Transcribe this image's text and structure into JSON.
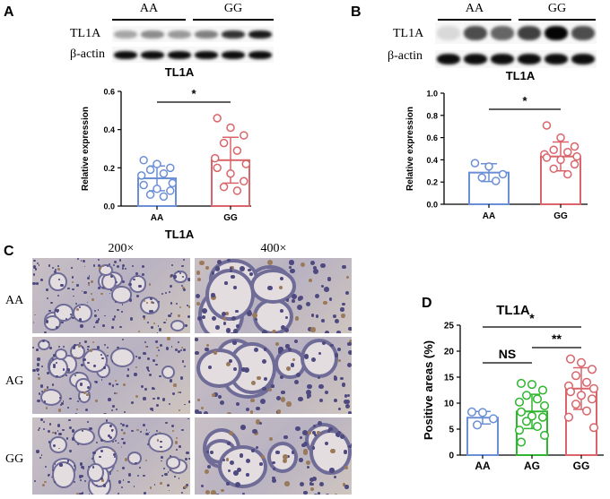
{
  "panels": {
    "A": {
      "letter": "A",
      "blot": {
        "groups": [
          "AA",
          "GG"
        ],
        "rows": [
          "TL1A",
          "β-actin"
        ],
        "tl1a_intensity": [
          0.35,
          0.45,
          0.4,
          0.5,
          0.8,
          0.9
        ],
        "actin_intensity": [
          0.95,
          0.95,
          0.95,
          0.95,
          0.95,
          0.95
        ]
      },
      "chart_data": {
        "type": "bar",
        "title": "TL1A",
        "bottom_label": "TL1A",
        "categories": [
          "AA",
          "GG"
        ],
        "ylabel": "Relative expression",
        "ylim": [
          0,
          0.6
        ],
        "yticks": [
          "0.0",
          "0.2",
          "0.4",
          "0.6"
        ],
        "means": [
          0.145,
          0.24
        ],
        "sd": [
          0.065,
          0.12
        ],
        "points": [
          [
            0.24,
            0.22,
            0.2,
            0.19,
            0.17,
            0.16,
            0.12,
            0.11,
            0.09,
            0.08,
            0.06,
            0.05
          ],
          [
            0.46,
            0.41,
            0.37,
            0.33,
            0.29,
            0.25,
            0.22,
            0.2,
            0.17,
            0.13,
            0.1,
            0.08
          ]
        ],
        "colors": [
          "#6b8fd6",
          "#d9646a"
        ],
        "significance": [
          {
            "from": 0,
            "to": 1,
            "label": "*"
          }
        ]
      }
    },
    "B": {
      "letter": "B",
      "blot": {
        "groups": [
          "AA",
          "GG"
        ],
        "rows": [
          "TL1A",
          "β-actin"
        ],
        "tl1a_intensity": [
          0.15,
          0.7,
          0.6,
          0.75,
          0.98,
          0.7
        ],
        "actin_intensity": [
          0.95,
          0.95,
          0.95,
          0.95,
          0.95,
          0.95
        ]
      },
      "chart_data": {
        "type": "bar",
        "title": "TL1A",
        "categories": [
          "AA",
          "GG"
        ],
        "ylabel": "Relative expression",
        "ylim": [
          0,
          1.0
        ],
        "yticks": [
          "0.0",
          "0.2",
          "0.4",
          "0.6",
          "0.8",
          "1.0"
        ],
        "means": [
          0.285,
          0.43
        ],
        "sd": [
          0.08,
          0.13
        ],
        "points": [
          [
            0.37,
            0.34,
            0.27,
            0.24,
            0.21
          ],
          [
            0.71,
            0.6,
            0.52,
            0.49,
            0.47,
            0.45,
            0.43,
            0.42,
            0.4,
            0.36,
            0.32,
            0.27
          ]
        ],
        "colors": [
          "#6b8fd6",
          "#d9646a"
        ],
        "significance": [
          {
            "from": 0,
            "to": 1,
            "label": "*"
          }
        ]
      }
    },
    "C": {
      "letter": "C",
      "columns": [
        "200×",
        "400×"
      ],
      "rows": [
        "AA",
        "AG",
        "GG"
      ]
    },
    "D": {
      "letter": "D",
      "chart_data": {
        "type": "bar",
        "title": "TL1A",
        "categories": [
          "AA",
          "AG",
          "GG"
        ],
        "ylabel": "Positive areas (%)",
        "ylim": [
          0,
          25
        ],
        "yticks": [
          "0",
          "5",
          "10",
          "15",
          "20",
          "25"
        ],
        "means": [
          7.2,
          8.4,
          12.8
        ],
        "sd": [
          1.2,
          3.3,
          4.0
        ],
        "points": [
          [
            8.3,
            8.2,
            7.0,
            5.8
          ],
          [
            13.8,
            13.6,
            12.5,
            11.5,
            10.8,
            10.2,
            9.5,
            8.3,
            7.5,
            7.3,
            6.5,
            5.5,
            4.8,
            3.8,
            2.5
          ],
          [
            18.5,
            17.8,
            16.5,
            15.3,
            14.0,
            13.3,
            12.8,
            12.2,
            11.5,
            10.8,
            9.8,
            8.5,
            7.3,
            5.3
          ]
        ],
        "colors": [
          "#6b8fd6",
          "#2fb52f",
          "#d9646a"
        ],
        "significance": [
          {
            "from": 0,
            "to": 2,
            "label": "*"
          },
          {
            "from": 0,
            "to": 1,
            "label": "NS"
          },
          {
            "from": 1,
            "to": 2,
            "label": "**"
          }
        ]
      }
    }
  }
}
